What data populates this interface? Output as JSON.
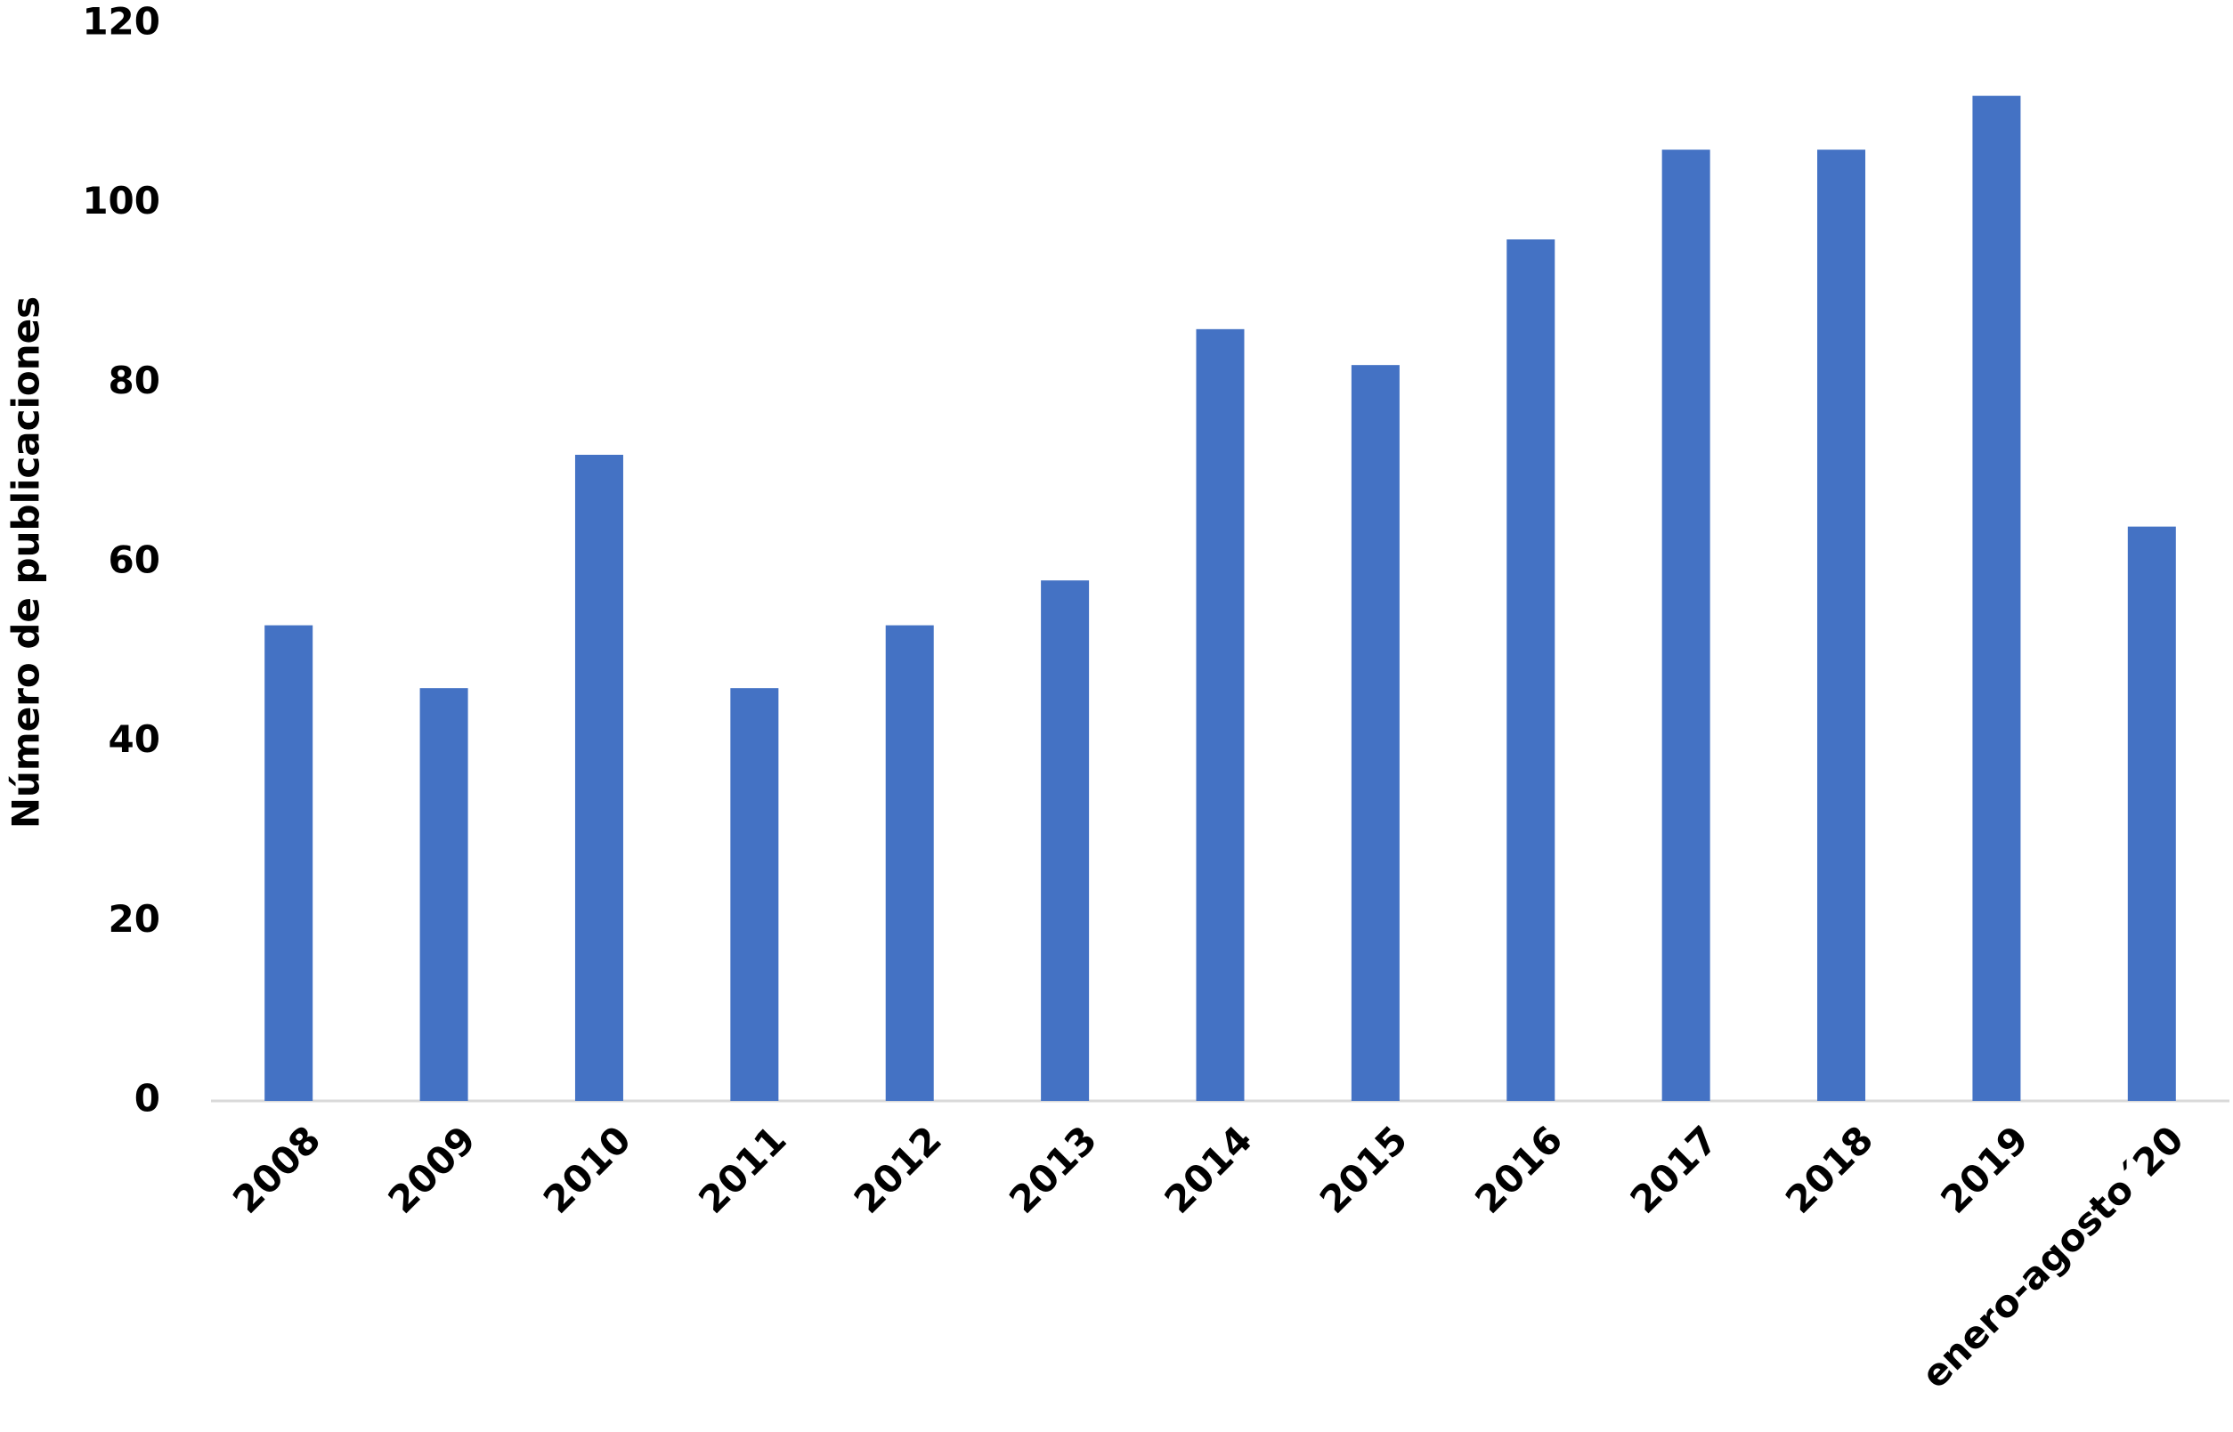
{
  "chart_data": {
    "type": "bar",
    "y_label": "Número de publicaciones",
    "categories": [
      "2008",
      "2009",
      "2010",
      "2011",
      "2012",
      "2013",
      "2014",
      "2015",
      "2016",
      "2017",
      "2018",
      "2019",
      "enero-agosto´20"
    ],
    "values": [
      53,
      46,
      72,
      46,
      53,
      58,
      86,
      82,
      96,
      106,
      106,
      112,
      64
    ],
    "color": "#4472c4",
    "ylim": [
      0,
      120
    ],
    "yticks": [
      0,
      20,
      40,
      60,
      80,
      100,
      120
    ],
    "grid": false
  }
}
